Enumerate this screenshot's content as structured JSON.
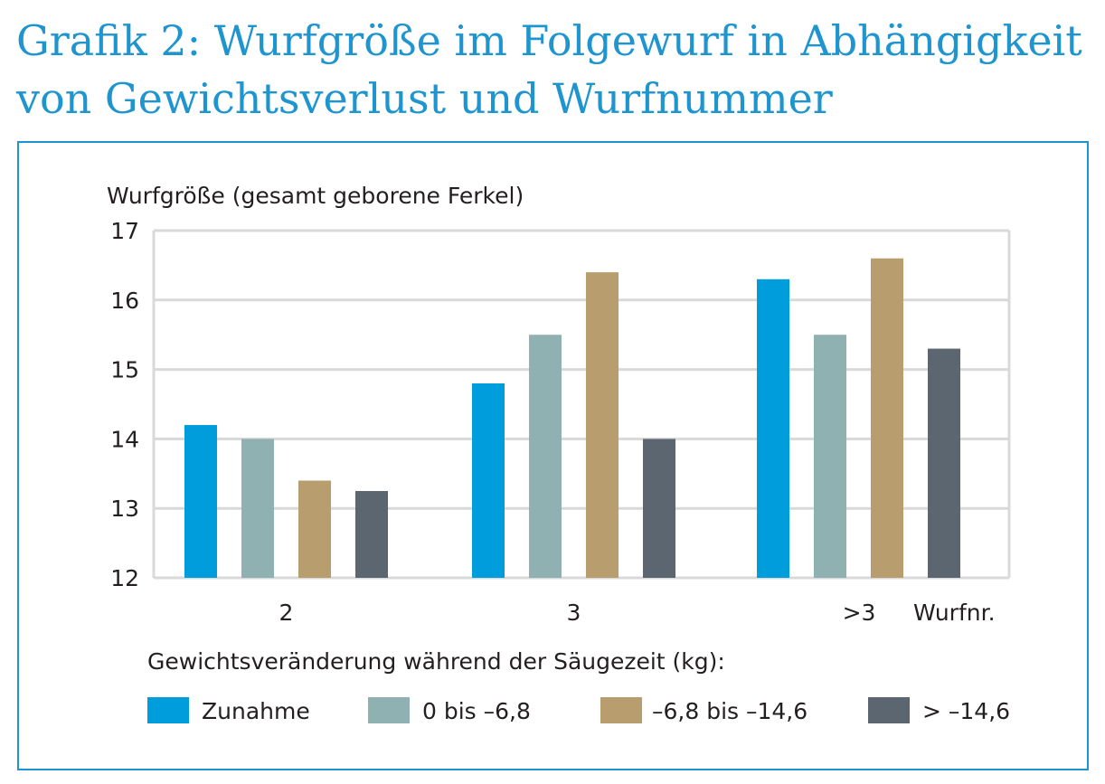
{
  "title_line1": "Grafik 2: Wurfgröße im Folgewurf in Abhängigkeit",
  "title_line2": "von Gewichtsverlust und Wurfnummer",
  "legend_title": "Gewichtsveränderung während der Säugezeit (kg):",
  "chart_data": {
    "type": "bar",
    "title": "Grafik 2: Wurfgröße im Folgewurf in Abhängigkeit von Gewichtsverlust und Wurfnummer",
    "ylabel": "Wurfgröße (gesamt geborene Ferkel)",
    "xlabel": "Wurfnr.",
    "ylim": [
      12,
      17
    ],
    "yticks": [
      "17",
      "16",
      "15",
      "14",
      "13",
      "12"
    ],
    "grid": true,
    "legend_position": "bottom",
    "categories": [
      "2",
      "3",
      ">3"
    ],
    "series": [
      {
        "name": "Zunahme",
        "color": "#009ddc",
        "values": [
          14.2,
          14.8,
          16.3
        ]
      },
      {
        "name": "0 bis –6,8",
        "color": "#8fb1b2",
        "values": [
          14.0,
          15.5,
          15.5
        ]
      },
      {
        "name": "–6,8 bis –14,6",
        "color": "#b89e6e",
        "values": [
          13.4,
          16.4,
          16.6
        ]
      },
      {
        "name": "> –14,6",
        "color": "#5c6670",
        "values": [
          13.25,
          14.0,
          15.3
        ]
      }
    ]
  }
}
